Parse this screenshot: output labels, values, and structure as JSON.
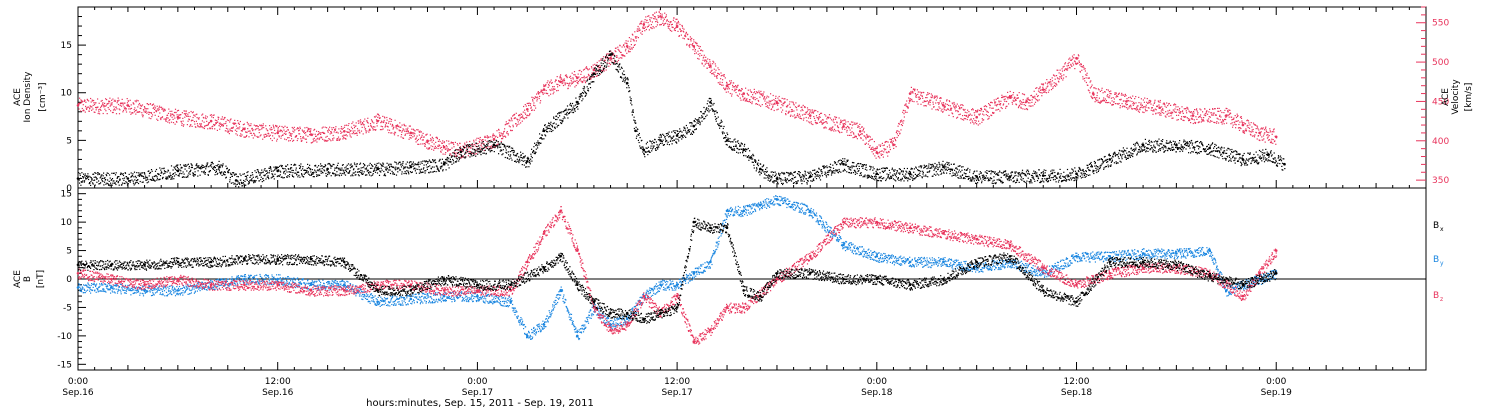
{
  "colors": {
    "black": "#000000",
    "pink": "#e8345c",
    "blue": "#1a86e0"
  },
  "x_axis": {
    "tick_labels": [
      {
        "time": "0:00",
        "date": "Sep.16",
        "hours": 0
      },
      {
        "time": "12:00",
        "date": "Sep.16",
        "hours": 12
      },
      {
        "time": "0:00",
        "date": "Sep.17",
        "hours": 24
      },
      {
        "time": "12:00",
        "date": "Sep.17",
        "hours": 36
      },
      {
        "time": "0:00",
        "date": "Sep.18",
        "hours": 48
      },
      {
        "time": "12:00",
        "date": "Sep.18",
        "hours": 60
      },
      {
        "time": "0:00",
        "date": "Sep.19",
        "hours": 72
      }
    ],
    "title": "hours:minutes, Sep. 15, 2011 - Sep. 19, 2011"
  },
  "chart_data": [
    {
      "type": "scatter",
      "panel": "top",
      "left_axis": {
        "label_lines": [
          "ACE",
          "Ion Density"
        ],
        "unit": "[cm⁻³]",
        "range": [
          0,
          19
        ],
        "ticks": [
          "0",
          "5",
          "10",
          "15"
        ]
      },
      "right_axis": {
        "label_lines": [
          "ACE",
          "Velocity"
        ],
        "unit": "[km/s]",
        "range": [
          340,
          570
        ],
        "ticks": [
          "350",
          "400",
          "450",
          "500",
          "550"
        ]
      },
      "x_range_hours": [
        0,
        81
      ],
      "series": [
        {
          "axis": "left",
          "color": "black",
          "x": [
            0,
            3,
            6,
            8.5,
            9.5,
            12,
            15,
            18,
            20,
            22,
            23,
            25,
            27,
            28,
            30,
            31,
            32,
            33,
            33.5,
            34,
            35,
            36,
            37,
            38,
            39,
            40,
            41,
            42,
            44,
            46,
            48,
            50,
            52,
            54,
            56,
            58,
            60,
            62,
            64,
            66,
            68,
            70,
            71.5,
            72.5
          ],
          "y": [
            1,
            1,
            1.8,
            2.2,
            0.8,
            1.8,
            2,
            2,
            2.2,
            2.5,
            3.8,
            4.5,
            2.8,
            6,
            9,
            12,
            14,
            11,
            6,
            4,
            5,
            5.5,
            6.5,
            9,
            5,
            4,
            2,
            1,
            1.2,
            2.5,
            1.5,
            1.5,
            2.2,
            1.2,
            1.2,
            1.3,
            1.5,
            3,
            4.5,
            4.5,
            4.2,
            3,
            3.5,
            2.5
          ]
        },
        {
          "axis": "right",
          "color": "pink",
          "x": [
            0,
            3,
            6,
            8,
            10,
            12,
            14,
            16,
            18,
            20,
            21,
            22,
            23,
            25,
            27,
            28,
            29,
            30,
            31,
            32,
            33,
            34,
            35,
            36,
            37,
            38,
            39,
            40,
            42,
            44,
            46,
            47,
            48,
            49,
            50,
            52,
            54,
            56,
            57,
            58,
            60,
            61,
            63,
            65,
            67,
            69,
            70,
            71,
            72
          ],
          "y": [
            445,
            445,
            430,
            425,
            415,
            410,
            408,
            412,
            425,
            410,
            400,
            392,
            388,
            402,
            440,
            465,
            475,
            480,
            490,
            505,
            520,
            548,
            558,
            545,
            520,
            495,
            470,
            460,
            448,
            432,
            418,
            412,
            385,
            395,
            460,
            445,
            430,
            455,
            450,
            465,
            505,
            460,
            450,
            442,
            432,
            432,
            420,
            410,
            405
          ]
        }
      ]
    },
    {
      "type": "scatter",
      "panel": "bottom",
      "left_axis": {
        "label_lines": [
          "ACE",
          "B"
        ],
        "unit": "[nT]",
        "range": [
          -16,
          16
        ],
        "ticks": [
          "-15",
          "-10",
          "-5",
          "0",
          "5",
          "10",
          "15"
        ]
      },
      "x_range_hours": [
        0,
        81
      ],
      "series": [
        {
          "name": "Bx",
          "color": "black",
          "x": [
            0,
            2,
            4,
            6,
            8,
            10,
            12,
            14,
            16,
            18,
            20,
            22,
            24,
            26,
            28,
            29,
            30,
            31,
            32,
            33,
            34,
            35,
            36,
            37,
            38,
            39,
            40,
            41,
            42,
            44,
            46,
            48,
            50,
            52,
            54,
            56,
            58,
            60,
            62,
            64,
            66,
            68,
            70,
            72
          ],
          "y": [
            2.5,
            2.5,
            2.5,
            3,
            3,
            3.5,
            3.5,
            3.5,
            3,
            -2,
            -2,
            0,
            -1,
            -1,
            2,
            4,
            -1,
            -4,
            -6,
            -6,
            -7,
            -6,
            -5,
            10,
            9,
            9,
            -2,
            -3,
            1,
            1,
            0,
            0,
            -1,
            0,
            3,
            4,
            -2,
            -4,
            3,
            3,
            2.5,
            0.5,
            -1,
            1
          ]
        },
        {
          "name": "By",
          "color": "blue",
          "x": [
            0,
            2,
            4,
            6,
            8,
            10,
            12,
            14,
            16,
            18,
            20,
            22,
            24,
            26,
            27,
            28,
            29,
            30,
            31,
            32,
            33,
            34,
            35,
            36,
            37,
            38,
            39,
            40,
            41,
            42,
            44,
            46,
            48,
            50,
            52,
            54,
            56,
            58,
            60,
            62,
            64,
            66,
            68,
            69,
            70,
            71,
            72
          ],
          "y": [
            -1.5,
            -1.5,
            -2,
            -2,
            -1,
            0,
            0,
            -1,
            -1,
            -4,
            -3.5,
            -3,
            -3,
            -4,
            -10,
            -8,
            -2,
            -10,
            -5,
            -8,
            -7,
            -3,
            -1,
            -1,
            1,
            3,
            12,
            12,
            13,
            14,
            12,
            6,
            4,
            3,
            3,
            2,
            3,
            1,
            4,
            4,
            4.5,
            4.5,
            5,
            -2,
            -1,
            0,
            1
          ]
        },
        {
          "name": "Bz",
          "color": "pink",
          "x": [
            0,
            2,
            4,
            6,
            8,
            10,
            12,
            14,
            16,
            18,
            20,
            22,
            24,
            26,
            27,
            28,
            29,
            30,
            31,
            32,
            33,
            34,
            35,
            36,
            37,
            38,
            39,
            40,
            42,
            44,
            46,
            48,
            50,
            52,
            54,
            56,
            58,
            60,
            62,
            64,
            66,
            68,
            70,
            71,
            72
          ],
          "y": [
            1,
            0,
            -1,
            0,
            -1,
            -1,
            -1,
            -2,
            -2,
            -1,
            -1,
            -2,
            -2,
            -2,
            3,
            8,
            12,
            5,
            -5,
            -9,
            -8,
            -3,
            -6,
            -3,
            -11,
            -9,
            -5,
            -5,
            0,
            4,
            10,
            10,
            9,
            8,
            7,
            6,
            2,
            -1,
            1,
            2,
            2,
            1,
            -3,
            1,
            5
          ]
        }
      ]
    }
  ],
  "legend": [
    {
      "key": "Bx",
      "symbol": "B",
      "subscript": "x",
      "color": "black"
    },
    {
      "key": "By",
      "symbol": "B",
      "subscript": "y",
      "color": "blue"
    },
    {
      "key": "Bz",
      "symbol": "B",
      "subscript": "z",
      "color": "pink"
    }
  ]
}
